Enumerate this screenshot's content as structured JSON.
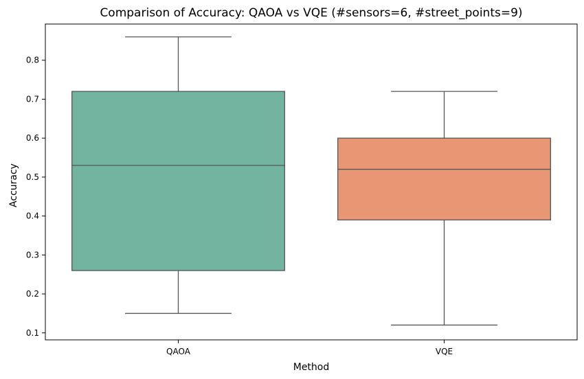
{
  "chart_data": {
    "type": "box",
    "title": "Comparison of Accuracy: QAOA vs VQE (#sensors=6, #street_points=9)",
    "xlabel": "Method",
    "ylabel": "Accuracy",
    "ylim": [
      0.082,
      0.893
    ],
    "yticks": [
      "0.1",
      "0.2",
      "0.3",
      "0.4",
      "0.5",
      "0.6",
      "0.7",
      "0.8"
    ],
    "grid": false,
    "legend": "none",
    "categories": [
      "QAOA",
      "VQE"
    ],
    "boxes": [
      {
        "category": "QAOA",
        "whisker_low": 0.15,
        "q1": 0.26,
        "median": 0.53,
        "q3": 0.72,
        "whisker_high": 0.86,
        "color": "#72b4a0"
      },
      {
        "category": "VQE",
        "whisker_low": 0.12,
        "q1": 0.39,
        "median": 0.52,
        "q3": 0.6,
        "whisker_high": 0.72,
        "color": "#e99675"
      }
    ]
  }
}
